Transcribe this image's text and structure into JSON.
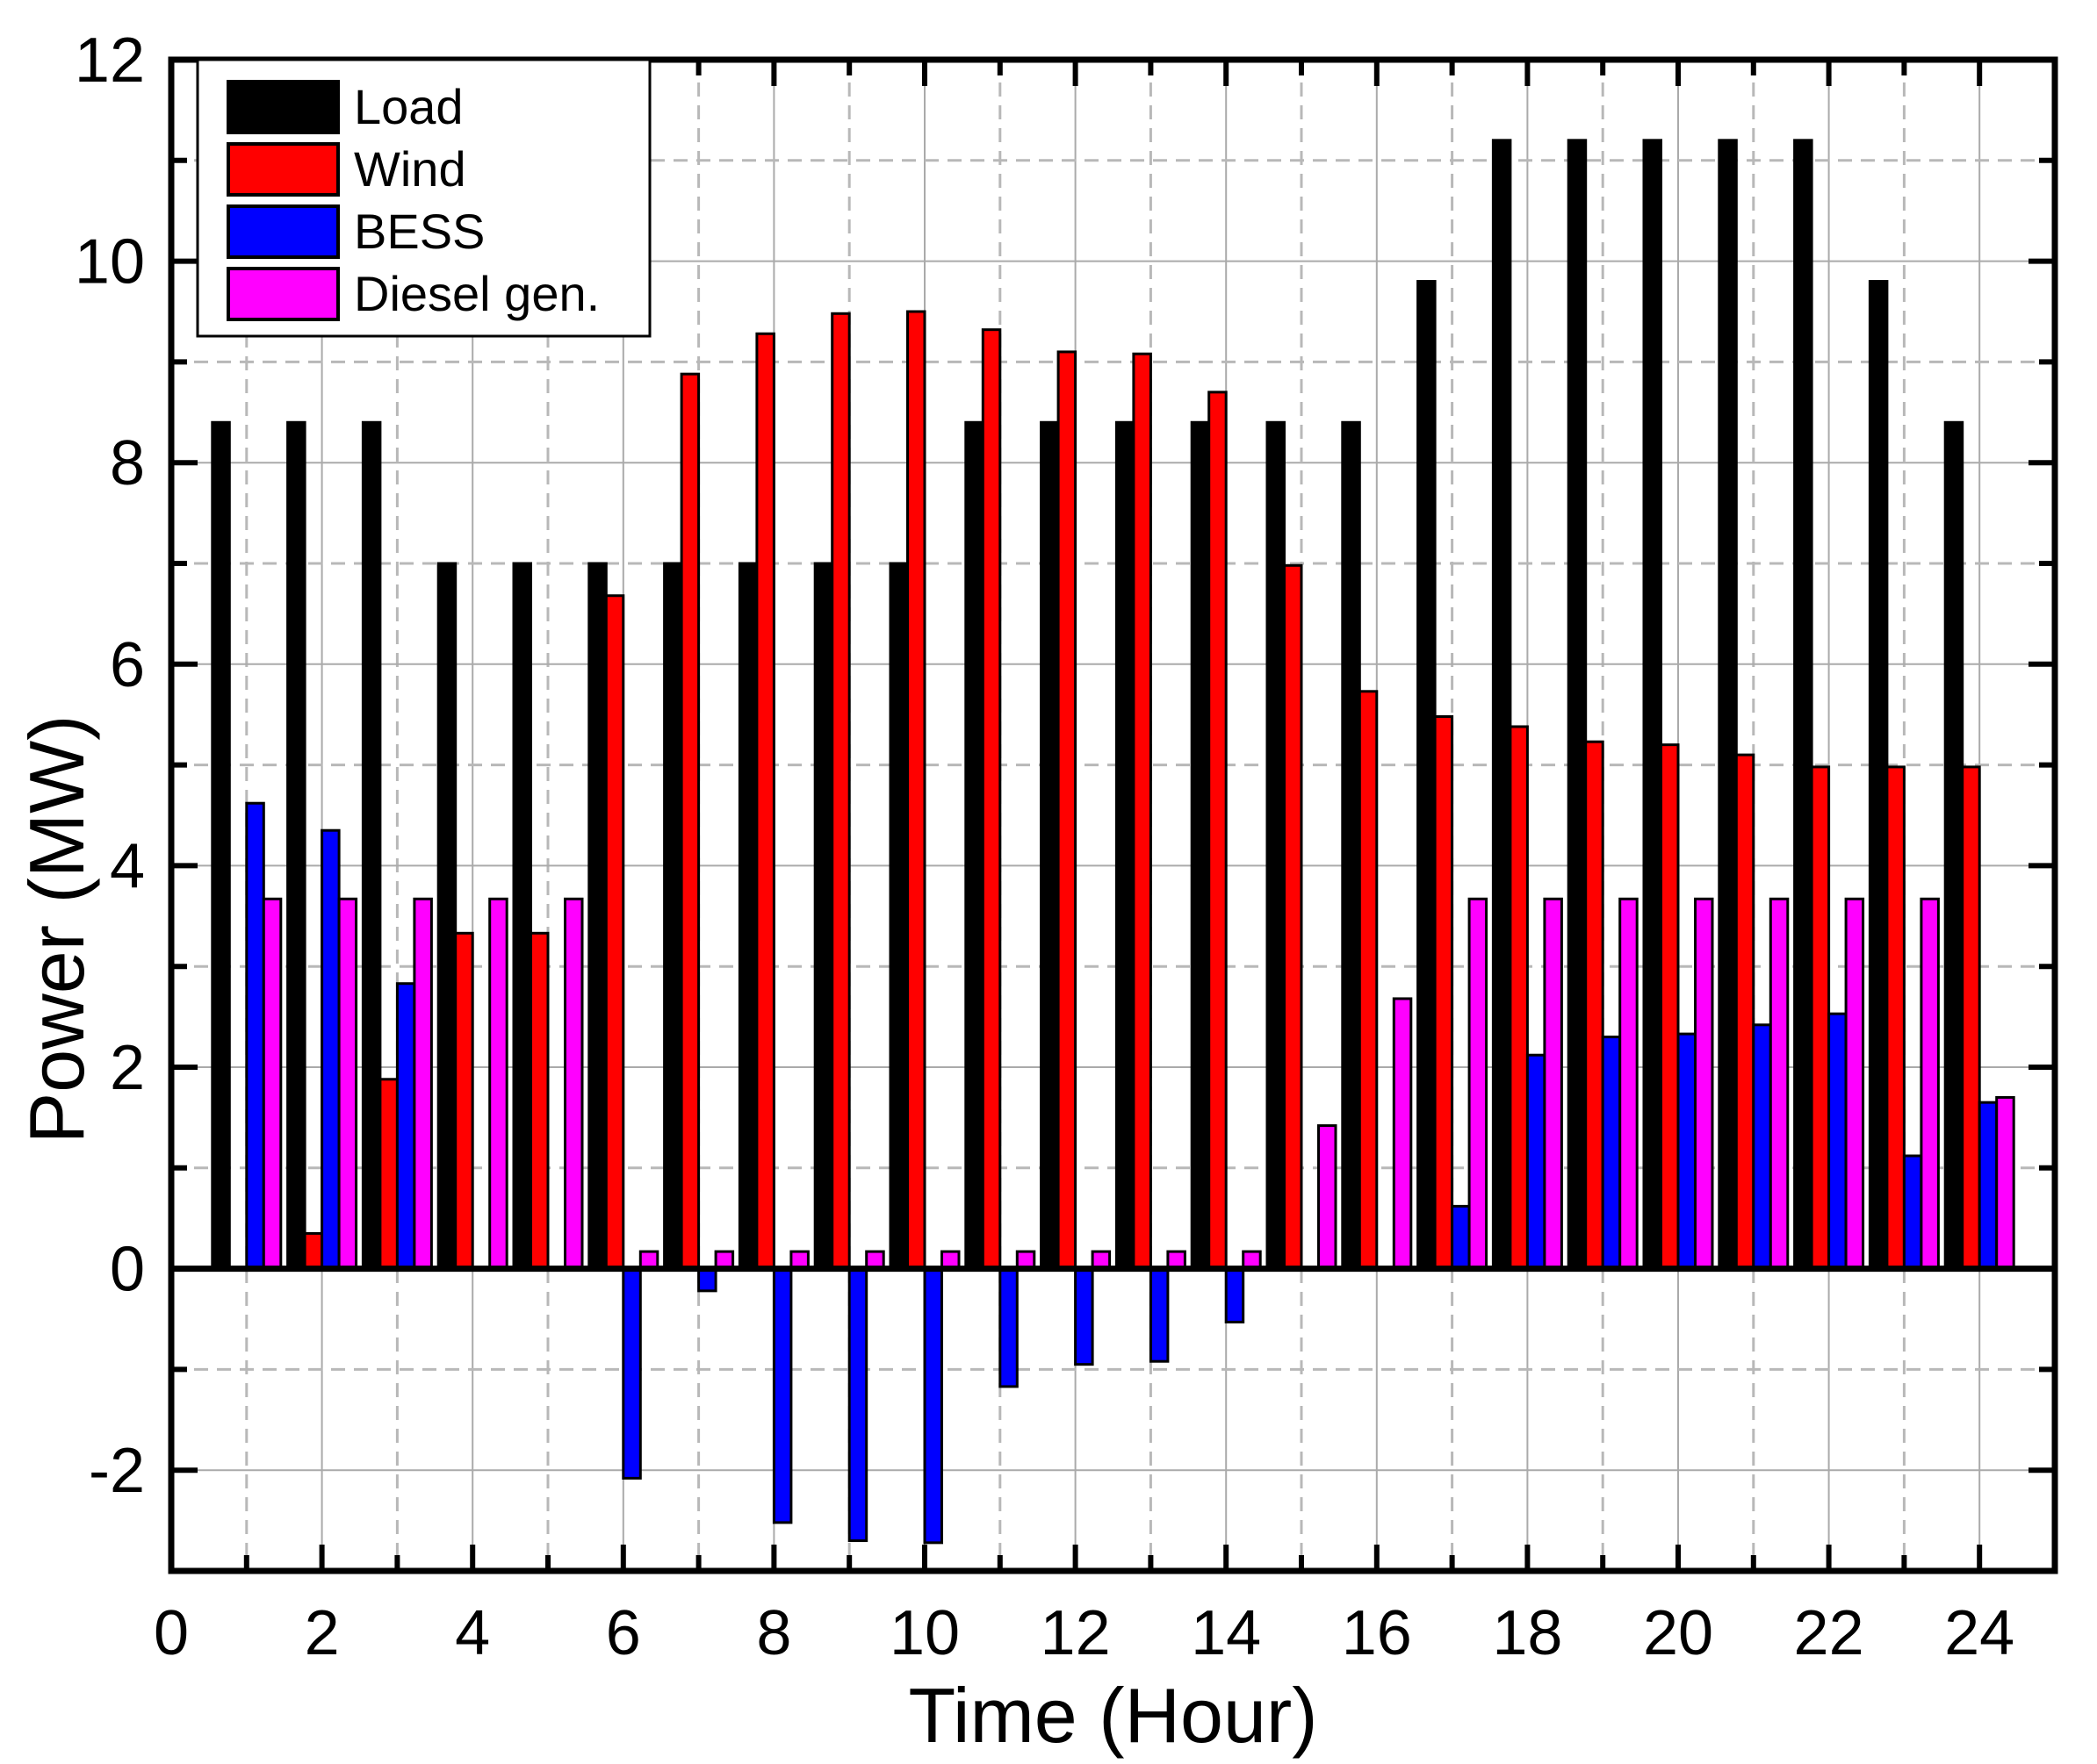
{
  "chart_data": {
    "type": "bar",
    "xlabel": "Time (Hour)",
    "ylabel": "Power (MW)",
    "xlim": [
      0,
      25
    ],
    "ylim": [
      -3,
      12
    ],
    "xticks": [
      0,
      2,
      4,
      6,
      8,
      10,
      12,
      14,
      16,
      18,
      20,
      22,
      24
    ],
    "yticks": [
      -2,
      0,
      2,
      4,
      6,
      8,
      10,
      12
    ],
    "grid": true,
    "legend_position": "top-left",
    "hours": [
      1,
      2,
      3,
      4,
      5,
      6,
      7,
      8,
      9,
      10,
      11,
      12,
      13,
      14,
      15,
      16,
      17,
      18,
      19,
      20,
      21,
      22,
      23,
      24
    ],
    "series": [
      {
        "name": "Load",
        "color": "#000000",
        "values": [
          8.4,
          8.4,
          8.4,
          7.0,
          7.0,
          7.0,
          7.0,
          7.0,
          7.0,
          7.0,
          8.4,
          8.4,
          8.4,
          8.4,
          8.4,
          8.4,
          9.8,
          11.2,
          11.2,
          11.2,
          11.2,
          11.2,
          9.8,
          8.4
        ]
      },
      {
        "name": "Wind",
        "color": "#ff0000",
        "values": [
          0.0,
          0.35,
          1.88,
          3.33,
          3.33,
          6.68,
          8.88,
          9.28,
          9.48,
          9.5,
          9.32,
          9.1,
          9.08,
          8.7,
          6.98,
          5.73,
          5.48,
          5.38,
          5.23,
          5.2,
          5.1,
          4.98,
          4.98,
          4.98
        ]
      },
      {
        "name": "BESS",
        "color": "#0000ff",
        "values": [
          4.62,
          4.35,
          2.83,
          0.0,
          0.0,
          -2.08,
          -0.22,
          -2.52,
          -2.7,
          -2.72,
          -1.17,
          -0.95,
          -0.92,
          -0.53,
          0.0,
          0.0,
          0.62,
          2.12,
          2.3,
          2.33,
          2.42,
          2.53,
          1.12,
          1.65
        ]
      },
      {
        "name": "Diesel gen.",
        "color": "#ff00ff",
        "values": [
          3.67,
          3.67,
          3.67,
          3.67,
          3.67,
          0.17,
          0.17,
          0.17,
          0.17,
          0.17,
          0.17,
          0.17,
          0.17,
          0.17,
          1.42,
          2.68,
          3.67,
          3.67,
          3.67,
          3.67,
          3.67,
          3.67,
          3.67,
          1.7
        ]
      }
    ]
  }
}
